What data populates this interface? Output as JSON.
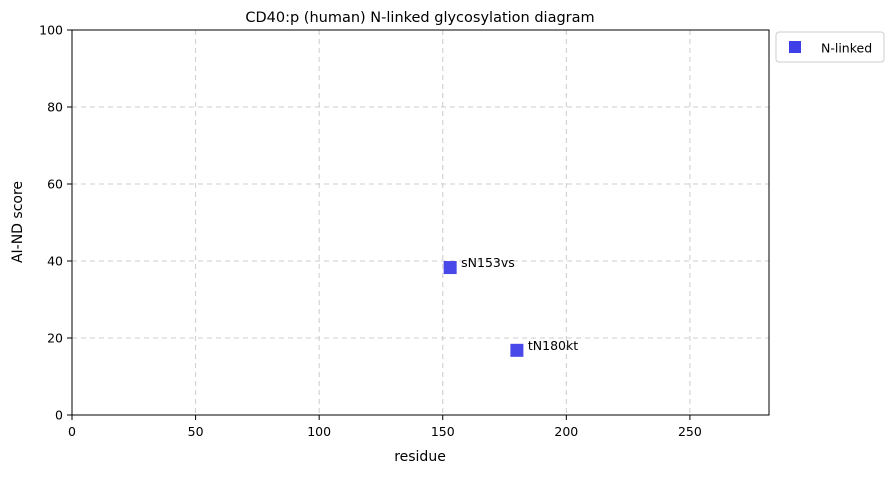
{
  "chart_data": {
    "type": "scatter",
    "title": "CD40:p (human) N-linked glycosylation diagram",
    "xlabel": "residue",
    "ylabel": "AI-ND score",
    "xlim": [
      0,
      282
    ],
    "ylim": [
      0,
      100
    ],
    "xticks": [
      0,
      50,
      100,
      150,
      200,
      250
    ],
    "yticks": [
      0,
      20,
      40,
      60,
      80,
      100
    ],
    "grid": true,
    "legend_position": "outside-top-right",
    "series": [
      {
        "name": "N-linked",
        "color": "#3f3fe8",
        "marker": "square",
        "points": [
          {
            "x": 153,
            "y": 38.3,
            "label": "sN153vs"
          },
          {
            "x": 180,
            "y": 16.8,
            "label": "tN180kt"
          }
        ]
      }
    ]
  }
}
